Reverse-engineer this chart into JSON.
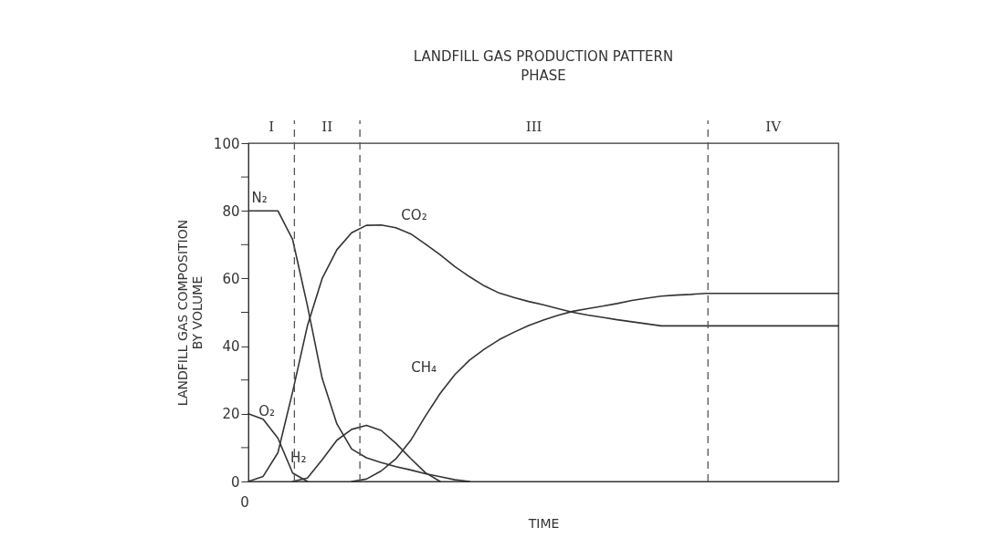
{
  "chart_data": {
    "type": "line",
    "title": "LANDFILL GAS PRODUCTION PATTERN",
    "subtitle": "PHASE",
    "xlabel": "TIME",
    "ylabel": "LANDFILL GAS COMPOSITION\nBY VOLUME",
    "annotations": [
      "0",
      "I",
      "II",
      "III",
      "IV"
    ],
    "categories": [
      null,
      null,
      null,
      null,
      null,
      null,
      null,
      null,
      null,
      null,
      null,
      null,
      null,
      null,
      null,
      null,
      null,
      null,
      null,
      null,
      null,
      null,
      null,
      null,
      null,
      null,
      null,
      null,
      null,
      null,
      null,
      null,
      null,
      null,
      null,
      null,
      null,
      null,
      null,
      null,
      null
    ],
    "ylim": [
      0,
      100
    ],
    "yticks": [
      0,
      {
        "value": 10,
        "label": null
      },
      20,
      {
        "value": 30,
        "label": null
      },
      40,
      {
        "value": 50,
        "label": null
      },
      60,
      {
        "value": 70,
        "label": null
      },
      80,
      {
        "value": 90,
        "label": null
      },
      100
    ],
    "grid": false,
    "legend": false,
    "marker": "none",
    "line_style": "solid",
    "series": [
      {
        "name": "N₂",
        "color": "#333333",
        "values": [
          80,
          80,
          80,
          71.5,
          52,
          30.5,
          17,
          9.6,
          7,
          5.6,
          4.4,
          3.4,
          2.3,
          1.4,
          0.5,
          0,
          null,
          null,
          null,
          null,
          null,
          null,
          null,
          null,
          null,
          null,
          null,
          null,
          null,
          null,
          null,
          null,
          null,
          null,
          null,
          null,
          null,
          null,
          null,
          null,
          null
        ]
      },
      {
        "name": "CO₂",
        "color": "#333333",
        "values": [
          0,
          1.5,
          8.5,
          26.5,
          46,
          60,
          68.5,
          73.5,
          75.7,
          75.8,
          75,
          73.2,
          70.2,
          67,
          63.5,
          60.5,
          57.8,
          55.7,
          54.4,
          53.2,
          52.2,
          51.1,
          50,
          49.2,
          48.5,
          47.8,
          47.2,
          46.6,
          46,
          46,
          46,
          46,
          46,
          46,
          46,
          46,
          46,
          46,
          46,
          46,
          46
        ]
      },
      {
        "name": "CH₄",
        "color": "#333333",
        "values": [
          null,
          null,
          null,
          null,
          null,
          null,
          null,
          0,
          0.7,
          3.1,
          6.7,
          12.1,
          19.3,
          26,
          31.6,
          35.9,
          39.1,
          41.9,
          44.1,
          46.1,
          47.7,
          49.1,
          50.3,
          51.1,
          51.8,
          52.6,
          53.5,
          54.2,
          54.8,
          55.1,
          55.3,
          55.6,
          55.6,
          55.6,
          55.6,
          55.6,
          55.6,
          55.6,
          55.6,
          55.6,
          55.6
        ]
      },
      {
        "name": "O₂",
        "color": "#333333",
        "values": [
          20,
          18.4,
          12.8,
          2.5,
          0,
          null,
          null,
          null,
          null,
          null,
          null,
          null,
          null,
          null,
          null,
          null,
          null,
          null,
          null,
          null,
          null,
          null,
          null,
          null,
          null,
          null,
          null,
          null,
          null,
          null,
          null,
          null,
          null,
          null,
          null,
          null,
          null,
          null,
          null,
          null,
          null
        ]
      },
      {
        "name": "H₂",
        "color": "#333333",
        "values": [
          null,
          null,
          null,
          0,
          1,
          6.4,
          12.2,
          15.4,
          16.6,
          15.1,
          11.3,
          6.8,
          2.6,
          0,
          null,
          null,
          null,
          null,
          null,
          null,
          null,
          null,
          null,
          null,
          null,
          null,
          null,
          null,
          null,
          null,
          null,
          null,
          null,
          null,
          null,
          null,
          null,
          null,
          null,
          null,
          null
        ]
      }
    ]
  }
}
